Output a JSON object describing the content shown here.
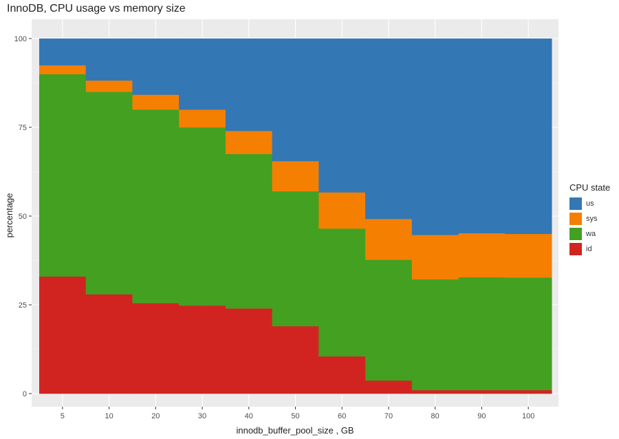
{
  "chart_data": {
    "type": "area",
    "title": "InnoDB, CPU usage vs memory size",
    "xlabel": "innodb_buffer_pool_size , GB",
    "ylabel": "percentage",
    "x": [
      5,
      10,
      20,
      30,
      40,
      50,
      60,
      70,
      80,
      90,
      100
    ],
    "xticks": [
      "5",
      "10",
      "20",
      "30",
      "40",
      "50",
      "60",
      "70",
      "80",
      "90",
      "100"
    ],
    "yticks": [
      "0",
      "25",
      "50",
      "75",
      "100"
    ],
    "ylim": [
      0,
      100
    ],
    "legend_title": "CPU state",
    "legend_position": "right",
    "grid": true,
    "stack_order": [
      "id",
      "wa",
      "sys",
      "us"
    ],
    "series": [
      {
        "name": "us",
        "color": "#3377B5",
        "values": [
          7.5,
          11.8,
          15.8,
          20.0,
          26.0,
          34.5,
          43.3,
          50.8,
          55.3,
          54.8,
          55.0
        ]
      },
      {
        "name": "sys",
        "color": "#F57F01",
        "values": [
          2.5,
          3.2,
          4.2,
          5.0,
          6.5,
          8.5,
          10.2,
          11.5,
          12.5,
          12.4,
          12.3
        ]
      },
      {
        "name": "wa",
        "color": "#43A021",
        "values": [
          57.0,
          57.0,
          54.5,
          50.2,
          43.5,
          38.0,
          36.0,
          34.0,
          31.2,
          31.8,
          31.7
        ]
      },
      {
        "name": "id",
        "color": "#D12421",
        "values": [
          33.0,
          28.0,
          25.5,
          24.8,
          24.0,
          19.0,
          10.5,
          3.7,
          1.0,
          1.0,
          1.0
        ]
      }
    ]
  }
}
